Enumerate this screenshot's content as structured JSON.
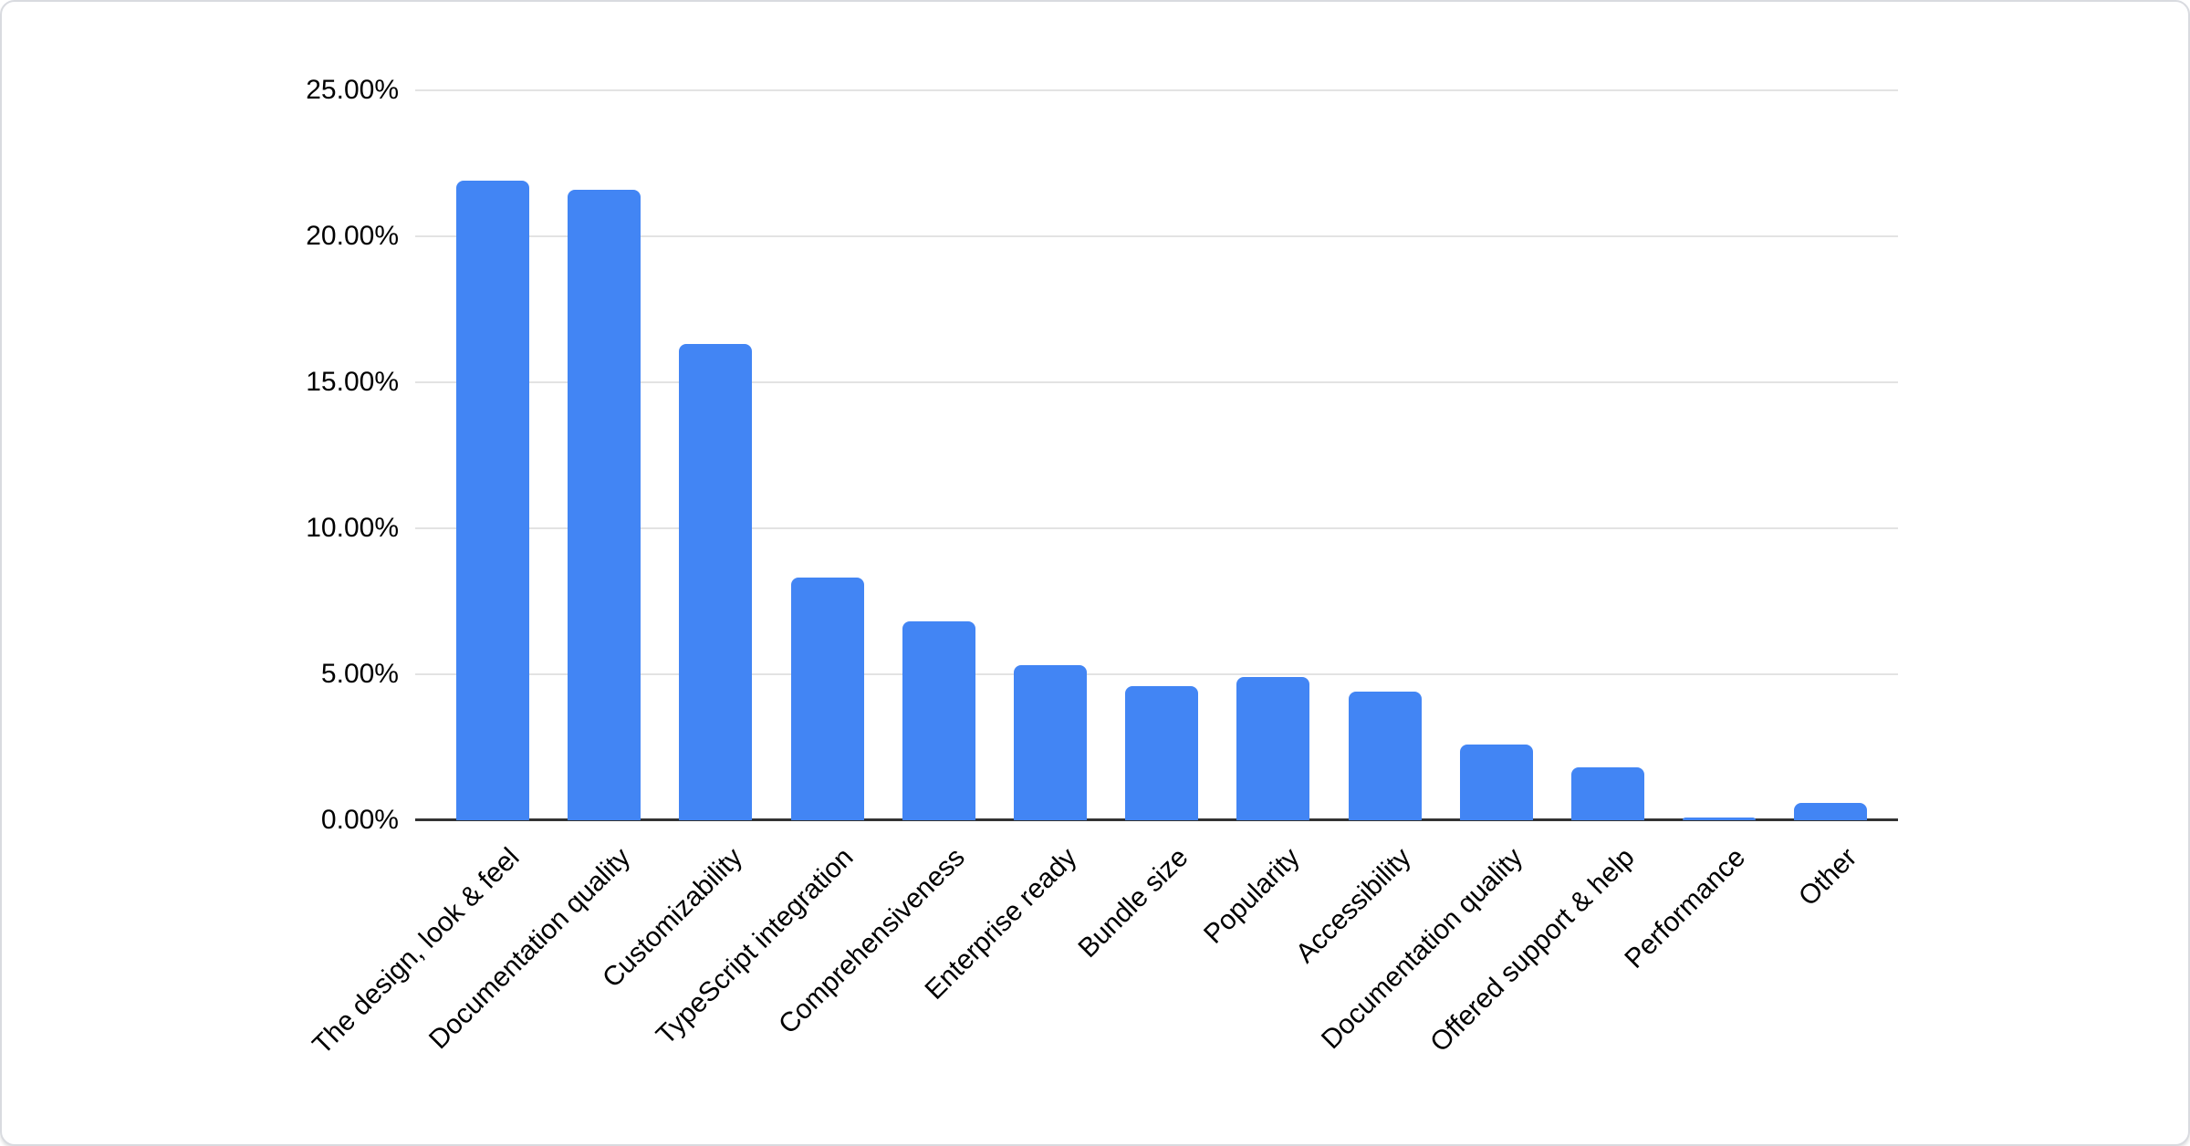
{
  "chart_data": {
    "type": "bar",
    "title": "",
    "xlabel": "",
    "ylabel": "",
    "categories": [
      "The design, look & feel",
      "Documentation quality",
      "Customizability",
      "TypeScript integration",
      "Comprehensiveness",
      "Enterprise ready",
      "Bundle size",
      "Popularity",
      "Accessibility",
      "Documentation quality",
      "Offered support & help",
      "Performance",
      "Other"
    ],
    "values": [
      21.9,
      21.6,
      16.3,
      8.3,
      6.8,
      5.3,
      4.6,
      4.9,
      4.4,
      2.6,
      1.8,
      0.1,
      0.6
    ],
    "unit": "%",
    "y_axis": {
      "ticks": [
        "25.00%",
        "20.00%",
        "15.00%",
        "10.00%",
        "5.00%",
        "0.00%"
      ],
      "tick_values": [
        25,
        20,
        15,
        10,
        5,
        0
      ],
      "min": 0,
      "max": 25
    },
    "x_label_rotation_deg": -45,
    "grid": true,
    "legend": "none",
    "colors": {
      "bar": "#4285f4",
      "gridline": "#e3e3e3",
      "axis_line": "#333333",
      "label_text": "#000000",
      "card_border": "#d9dbe0",
      "background": "#ffffff"
    }
  }
}
